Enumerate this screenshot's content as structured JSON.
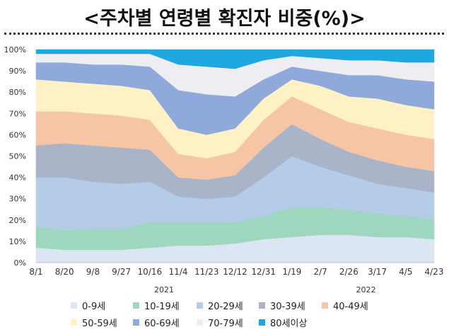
{
  "title": "<주차별 연령별 확진자 비중(%)>",
  "chart_data": {
    "type": "area",
    "stacked": true,
    "ylim": [
      0,
      100
    ],
    "y_ticks": [
      "0%",
      "10%",
      "20%",
      "30%",
      "40%",
      "50%",
      "60%",
      "70%",
      "80%",
      "90%",
      "100%"
    ],
    "x_tick_labels": [
      "8/1",
      "8/20",
      "9/8",
      "9/27",
      "10/16",
      "11/4",
      "11/23",
      "12/12",
      "12/31",
      "1/19",
      "2/7",
      "2/26",
      "3/17",
      "4/5",
      "4/23"
    ],
    "year_labels": [
      "2021",
      "2022"
    ],
    "x": [
      "8/1",
      "8/20",
      "9/8",
      "9/27",
      "10/16",
      "11/4",
      "11/23",
      "12/12",
      "12/31",
      "1/19",
      "2/7",
      "2/26",
      "3/17",
      "4/5",
      "4/23"
    ],
    "series": [
      {
        "name": "0-9세",
        "color": "#dce6f2",
        "values": [
          7,
          6,
          6,
          6,
          7,
          8,
          8,
          9,
          11,
          12,
          13,
          13,
          12,
          12,
          11
        ]
      },
      {
        "name": "10-19세",
        "color": "#9fd6bf",
        "values": [
          10,
          9,
          10,
          10,
          12,
          11,
          11,
          10,
          11,
          14,
          13,
          12,
          11,
          10,
          9
        ]
      },
      {
        "name": "20-29세",
        "color": "#b4cce8",
        "values": [
          23,
          25,
          22,
          21,
          19,
          12,
          11,
          12,
          18,
          24,
          19,
          16,
          14,
          13,
          13
        ]
      },
      {
        "name": "30-39세",
        "color": "#a9b4c8",
        "values": [
          15,
          16,
          17,
          17,
          15,
          9,
          9,
          10,
          14,
          15,
          13,
          11,
          11,
          10,
          10
        ]
      },
      {
        "name": "40-49세",
        "color": "#f5c5a6",
        "values": [
          16,
          15,
          15,
          15,
          14,
          11,
          10,
          11,
          13,
          13,
          14,
          14,
          15,
          15,
          15
        ]
      },
      {
        "name": "50-59세",
        "color": "#fdf1c5",
        "values": [
          15,
          14,
          14,
          14,
          14,
          12,
          11,
          11,
          10,
          8,
          11,
          12,
          14,
          14,
          14
        ]
      },
      {
        "name": "60-69세",
        "color": "#8ea9da",
        "values": [
          8,
          9,
          9,
          10,
          11,
          18,
          19,
          15,
          9,
          6,
          7,
          10,
          11,
          12,
          13
        ]
      },
      {
        "name": "70-79세",
        "color": "#eeeef2",
        "values": [
          4,
          4,
          5,
          5,
          6,
          12,
          13,
          13,
          9,
          5,
          6,
          7,
          7,
          8,
          9
        ]
      },
      {
        "name": "80세이상",
        "color": "#1ea7e0",
        "values": [
          2,
          2,
          2,
          2,
          2,
          7,
          8,
          9,
          5,
          3,
          4,
          5,
          5,
          6,
          6
        ]
      }
    ],
    "legend_position": "bottom",
    "grid": false
  }
}
